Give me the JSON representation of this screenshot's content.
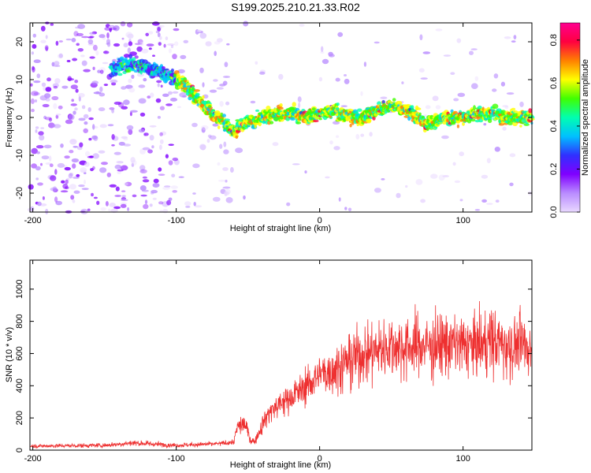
{
  "title": "S199.2025.210.21.33.R02",
  "chart_data": [
    {
      "type": "heatmap",
      "xlabel": "Height of straight line (km)",
      "ylabel": "Frequency (Hz)",
      "xlim": [
        -202,
        148
      ],
      "ylim": [
        -25,
        25
      ],
      "xticks": [
        -200,
        -100,
        0,
        100
      ],
      "yticks": [
        -20,
        -10,
        0,
        10,
        20
      ],
      "colorbar": {
        "label": "Normalized spectral amplitude",
        "range": [
          0.0,
          0.88
        ],
        "ticks": [
          0.0,
          0.2,
          0.4,
          0.6,
          0.8
        ],
        "colors": [
          "#e9d8ff",
          "#b98cff",
          "#8000ff",
          "#3030ff",
          "#00c0ff",
          "#00ffb0",
          "#40ff00",
          "#ffff00",
          "#ff8000",
          "#ff0040",
          "#ff0090"
        ]
      },
      "ridge": {
        "x": [
          -145,
          -130,
          -120,
          -110,
          -100,
          -95,
          -90,
          -85,
          -80,
          -75,
          -70,
          -65,
          -60,
          -55,
          -50,
          -45,
          -40,
          -30,
          -20,
          -10,
          0,
          10,
          20,
          30,
          40,
          50,
          60,
          70,
          75,
          80,
          90,
          100,
          110,
          120,
          130,
          140,
          148
        ],
        "y": [
          13,
          14,
          13,
          12,
          10,
          9,
          7,
          5,
          3,
          1,
          0,
          -2,
          -4,
          -2,
          -1,
          -1,
          0,
          1,
          1,
          0,
          1,
          2,
          0,
          0,
          2,
          3,
          2,
          0,
          -2,
          -1,
          0,
          0,
          1,
          1,
          0,
          0,
          0
        ]
      }
    },
    {
      "type": "line",
      "xlabel": "Height of straight line (km)",
      "ylabel": "SNR (10 * v/v)",
      "xlim": [
        -202,
        148
      ],
      "ylim": [
        0,
        1180
      ],
      "xticks": [
        -200,
        -100,
        0,
        100
      ],
      "yticks": [
        0,
        200,
        400,
        600,
        800,
        1000
      ],
      "line_color": "#ee3030",
      "envelope": {
        "x": [
          -202,
          -150,
          -130,
          -100,
          -70,
          -60,
          -57,
          -52,
          -48,
          -45,
          -40,
          -35,
          -30,
          -20,
          -10,
          0,
          10,
          20,
          30,
          40,
          50,
          60,
          70,
          80,
          90,
          100,
          110,
          120,
          130,
          140,
          148
        ],
        "mean": [
          25,
          30,
          45,
          30,
          40,
          50,
          150,
          160,
          60,
          55,
          160,
          240,
          270,
          330,
          390,
          470,
          500,
          550,
          600,
          620,
          650,
          640,
          650,
          650,
          660,
          650,
          650,
          680,
          650,
          650,
          640
        ],
        "spread": [
          12,
          15,
          20,
          15,
          15,
          20,
          60,
          60,
          25,
          20,
          60,
          80,
          90,
          100,
          110,
          140,
          160,
          180,
          200,
          200,
          210,
          210,
          200,
          220,
          210,
          200,
          210,
          220,
          200,
          210,
          200
        ]
      }
    }
  ]
}
